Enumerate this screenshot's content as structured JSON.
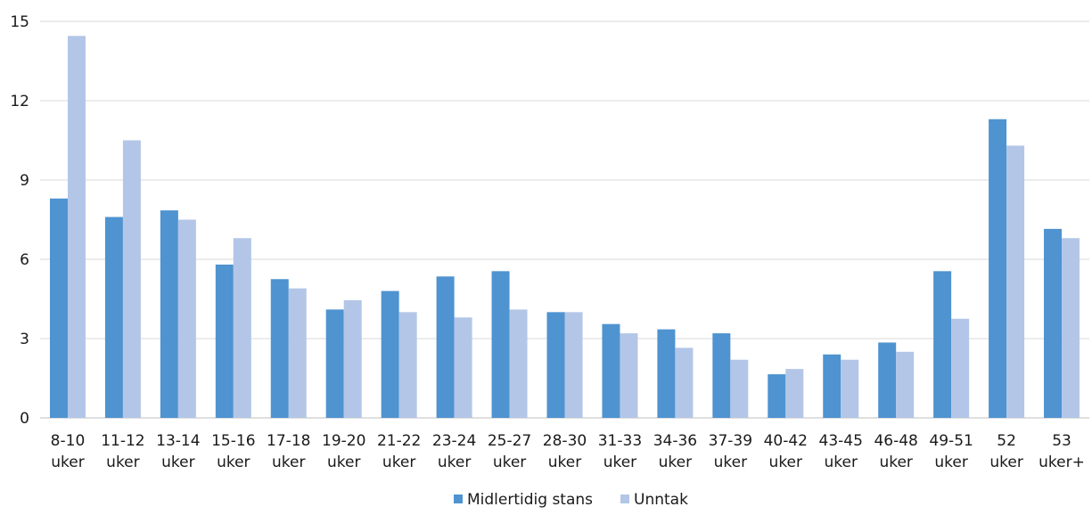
{
  "chart_data": {
    "type": "bar",
    "categories": [
      [
        "8-10",
        "uker"
      ],
      [
        "11-12",
        "uker"
      ],
      [
        "13-14",
        "uker"
      ],
      [
        "15-16",
        "uker"
      ],
      [
        "17-18",
        "uker"
      ],
      [
        "19-20",
        "uker"
      ],
      [
        "21-22",
        "uker"
      ],
      [
        "23-24",
        "uker"
      ],
      [
        "25-27",
        "uker"
      ],
      [
        "28-30",
        "uker"
      ],
      [
        "31-33",
        "uker"
      ],
      [
        "34-36",
        "uker"
      ],
      [
        "37-39",
        "uker"
      ],
      [
        "40-42",
        "uker"
      ],
      [
        "43-45",
        "uker"
      ],
      [
        "46-48",
        "uker"
      ],
      [
        "49-51",
        "uker"
      ],
      [
        "52",
        "uker"
      ],
      [
        "53",
        "uker+"
      ]
    ],
    "series": [
      {
        "name": "Midlertidig stans",
        "color": "#4f93d0",
        "values": [
          8.3,
          7.6,
          7.85,
          5.8,
          5.25,
          4.1,
          4.8,
          5.35,
          5.55,
          4.0,
          3.55,
          3.35,
          3.2,
          1.65,
          2.4,
          2.85,
          5.55,
          11.3,
          7.15
        ]
      },
      {
        "name": "Unntak",
        "color": "#b3c6e7",
        "values": [
          14.45,
          10.5,
          7.5,
          6.8,
          4.9,
          4.45,
          4.0,
          3.8,
          4.1,
          4.0,
          3.2,
          2.65,
          2.2,
          1.85,
          2.2,
          2.5,
          3.75,
          10.3,
          6.8
        ]
      }
    ],
    "yticks": [
      0,
      3,
      6,
      9,
      12,
      15
    ],
    "ylim": [
      0,
      15
    ],
    "grid": true,
    "legend_position": "bottom-center",
    "title": "",
    "xlabel": "",
    "ylabel": ""
  }
}
